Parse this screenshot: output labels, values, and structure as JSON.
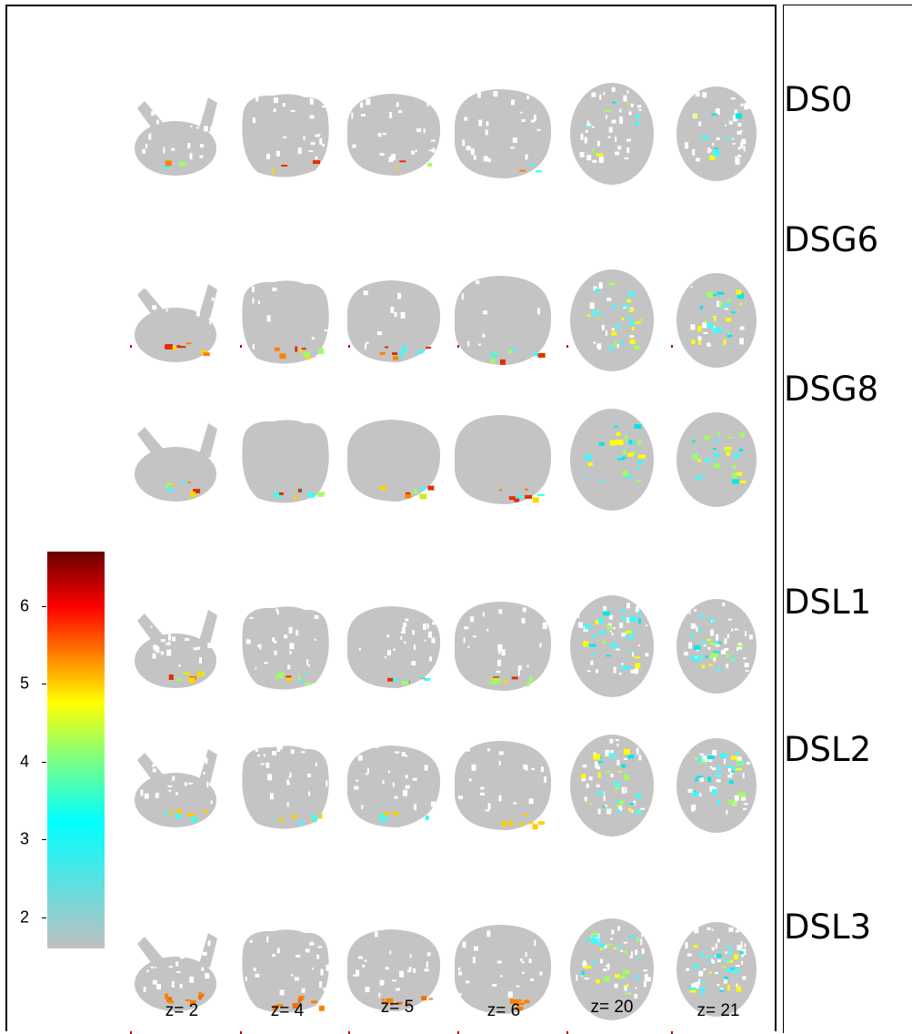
{
  "rows": [
    {
      "label": "DS0",
      "type": "sparse"
    },
    {
      "label": "DSG6",
      "type": "smooth6"
    },
    {
      "label": "DSG8",
      "type": "smooth8"
    },
    {
      "label": "DSL1",
      "type": "sparse"
    },
    {
      "label": "DSL2",
      "type": "sparse"
    },
    {
      "label": "DSL3",
      "type": "sparse"
    }
  ],
  "slices": [
    "z= 2",
    "z= 4",
    "z= 5",
    "z= 6",
    "z= 20",
    "z= 21"
  ],
  "colorbar": {
    "ticks": [
      "2",
      "3",
      "4",
      "5",
      "6"
    ],
    "min": 1.6,
    "max": 6.7,
    "colors": [
      "#c0c0c0",
      "#00ffff",
      "#ffff00",
      "#ff8000",
      "#ff0000",
      "#700000"
    ]
  }
}
